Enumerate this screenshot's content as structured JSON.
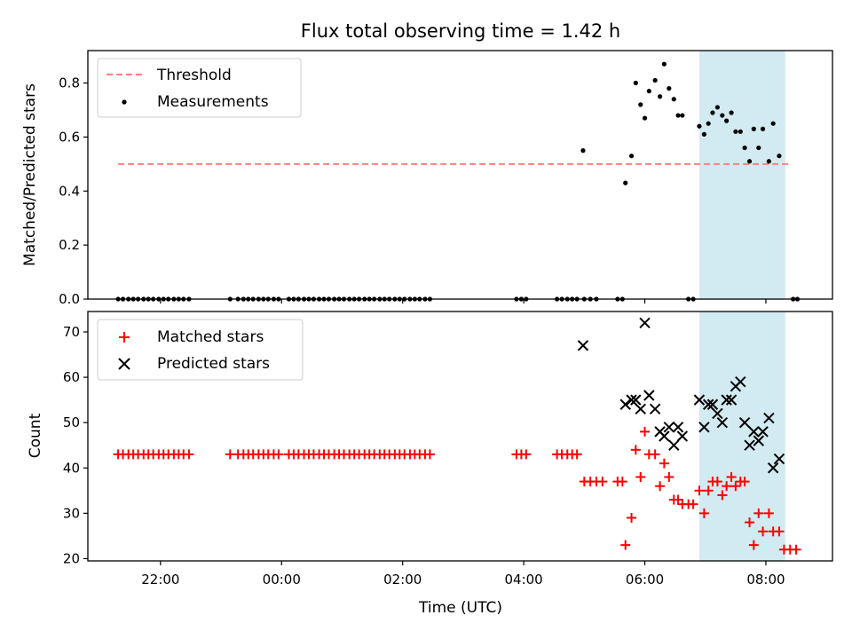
{
  "chart_data": {
    "type": "scatter",
    "title": "Flux total observing time = 1.42 h",
    "xlabel": "Time (UTC)",
    "x_unit": "hours since 00:00 UTC",
    "xlim": [
      -3.2,
      9.1
    ],
    "x_ticks": [
      -2,
      0,
      2,
      4,
      6,
      8
    ],
    "x_tick_labels": [
      "22:00",
      "00:00",
      "02:00",
      "04:00",
      "06:00",
      "08:00"
    ],
    "shaded_span": {
      "x": [
        6.9,
        8.32
      ],
      "color": "#add8e6"
    },
    "panels": [
      {
        "id": "top",
        "ylabel": "Matched/Predicted stars",
        "ylim": [
          0,
          0.92
        ],
        "y_ticks": [
          0.0,
          0.2,
          0.4,
          0.6,
          0.8
        ],
        "y_tick_labels": [
          "0.0",
          "0.2",
          "0.4",
          "0.6",
          "0.8"
        ],
        "legend_position": "top-left",
        "threshold": {
          "name": "Threshold",
          "y": 0.5,
          "x": [
            -2.7,
            8.4
          ],
          "color": "#ff7f7f"
        },
        "series": [
          {
            "name": "Measurements",
            "color": "#000000",
            "marker": "dot",
            "points": [
              [
                -2.7,
                0
              ],
              [
                -2.62,
                0
              ],
              [
                -2.53,
                0
              ],
              [
                -2.45,
                0
              ],
              [
                -2.37,
                0
              ],
              [
                -2.28,
                0
              ],
              [
                -2.2,
                0
              ],
              [
                -2.12,
                0
              ],
              [
                -2.03,
                0
              ],
              [
                -1.95,
                0
              ],
              [
                -1.87,
                0
              ],
              [
                -1.78,
                0
              ],
              [
                -1.7,
                0
              ],
              [
                -1.62,
                0
              ],
              [
                -1.53,
                0
              ],
              [
                -0.85,
                0
              ],
              [
                -0.72,
                0
              ],
              [
                -0.63,
                0
              ],
              [
                -0.55,
                0
              ],
              [
                -0.47,
                0
              ],
              [
                -0.38,
                0
              ],
              [
                -0.3,
                0
              ],
              [
                -0.22,
                0
              ],
              [
                -0.13,
                0
              ],
              [
                -0.05,
                0
              ],
              [
                0.12,
                0
              ],
              [
                0.2,
                0
              ],
              [
                0.28,
                0
              ],
              [
                0.37,
                0
              ],
              [
                0.45,
                0
              ],
              [
                0.53,
                0
              ],
              [
                0.62,
                0
              ],
              [
                0.7,
                0
              ],
              [
                0.78,
                0
              ],
              [
                0.87,
                0
              ],
              [
                0.95,
                0
              ],
              [
                1.03,
                0
              ],
              [
                1.12,
                0
              ],
              [
                1.2,
                0
              ],
              [
                1.28,
                0
              ],
              [
                1.37,
                0
              ],
              [
                1.45,
                0
              ],
              [
                1.53,
                0
              ],
              [
                1.62,
                0
              ],
              [
                1.7,
                0
              ],
              [
                1.78,
                0
              ],
              [
                1.87,
                0
              ],
              [
                1.95,
                0
              ],
              [
                2.03,
                0
              ],
              [
                2.12,
                0
              ],
              [
                2.2,
                0
              ],
              [
                2.28,
                0
              ],
              [
                2.37,
                0
              ],
              [
                2.45,
                0
              ],
              [
                3.88,
                0
              ],
              [
                3.96,
                0
              ],
              [
                4.04,
                0
              ],
              [
                4.55,
                0
              ],
              [
                4.63,
                0
              ],
              [
                4.72,
                0
              ],
              [
                4.8,
                0
              ],
              [
                4.88,
                0
              ],
              [
                5.0,
                0
              ],
              [
                5.1,
                0
              ],
              [
                5.2,
                0
              ],
              [
                5.55,
                0
              ],
              [
                5.63,
                0
              ],
              [
                6.72,
                0
              ],
              [
                6.8,
                0
              ],
              [
                8.45,
                0
              ],
              [
                8.52,
                0
              ],
              [
                4.98,
                0.55
              ],
              [
                5.68,
                0.43
              ],
              [
                5.78,
                0.53
              ],
              [
                5.85,
                0.8
              ],
              [
                5.93,
                0.72
              ],
              [
                6.0,
                0.67
              ],
              [
                6.07,
                0.77
              ],
              [
                6.17,
                0.81
              ],
              [
                6.25,
                0.75
              ],
              [
                6.32,
                0.87
              ],
              [
                6.4,
                0.78
              ],
              [
                6.48,
                0.74
              ],
              [
                6.55,
                0.68
              ],
              [
                6.62,
                0.68
              ],
              [
                6.9,
                0.64
              ],
              [
                6.98,
                0.61
              ],
              [
                7.05,
                0.65
              ],
              [
                7.12,
                0.69
              ],
              [
                7.2,
                0.71
              ],
              [
                7.28,
                0.68
              ],
              [
                7.35,
                0.66
              ],
              [
                7.43,
                0.69
              ],
              [
                7.5,
                0.62
              ],
              [
                7.58,
                0.62
              ],
              [
                7.65,
                0.56
              ],
              [
                7.73,
                0.51
              ],
              [
                7.8,
                0.63
              ],
              [
                7.88,
                0.56
              ],
              [
                7.95,
                0.63
              ],
              [
                8.05,
                0.51
              ],
              [
                8.12,
                0.65
              ],
              [
                8.22,
                0.53
              ]
            ]
          }
        ]
      },
      {
        "id": "bottom",
        "ylabel": "Count",
        "ylim": [
          19.5,
          74.5
        ],
        "y_ticks": [
          20,
          30,
          40,
          50,
          60,
          70
        ],
        "y_tick_labels": [
          "20",
          "30",
          "40",
          "50",
          "60",
          "70"
        ],
        "legend_position": "top-left",
        "series": [
          {
            "name": "Matched stars",
            "color": "#ff0000",
            "marker": "plus",
            "points": [
              [
                -2.7,
                43
              ],
              [
                -2.62,
                43
              ],
              [
                -2.53,
                43
              ],
              [
                -2.45,
                43
              ],
              [
                -2.37,
                43
              ],
              [
                -2.28,
                43
              ],
              [
                -2.2,
                43
              ],
              [
                -2.12,
                43
              ],
              [
                -2.03,
                43
              ],
              [
                -1.95,
                43
              ],
              [
                -1.87,
                43
              ],
              [
                -1.78,
                43
              ],
              [
                -1.7,
                43
              ],
              [
                -1.62,
                43
              ],
              [
                -1.53,
                43
              ],
              [
                -0.85,
                43
              ],
              [
                -0.72,
                43
              ],
              [
                -0.63,
                43
              ],
              [
                -0.55,
                43
              ],
              [
                -0.47,
                43
              ],
              [
                -0.38,
                43
              ],
              [
                -0.3,
                43
              ],
              [
                -0.22,
                43
              ],
              [
                -0.13,
                43
              ],
              [
                -0.05,
                43
              ],
              [
                0.12,
                43
              ],
              [
                0.2,
                43
              ],
              [
                0.28,
                43
              ],
              [
                0.37,
                43
              ],
              [
                0.45,
                43
              ],
              [
                0.53,
                43
              ],
              [
                0.62,
                43
              ],
              [
                0.7,
                43
              ],
              [
                0.78,
                43
              ],
              [
                0.87,
                43
              ],
              [
                0.95,
                43
              ],
              [
                1.03,
                43
              ],
              [
                1.12,
                43
              ],
              [
                1.2,
                43
              ],
              [
                1.28,
                43
              ],
              [
                1.37,
                43
              ],
              [
                1.45,
                43
              ],
              [
                1.53,
                43
              ],
              [
                1.62,
                43
              ],
              [
                1.7,
                43
              ],
              [
                1.78,
                43
              ],
              [
                1.87,
                43
              ],
              [
                1.95,
                43
              ],
              [
                2.03,
                43
              ],
              [
                2.12,
                43
              ],
              [
                2.2,
                43
              ],
              [
                2.28,
                43
              ],
              [
                2.37,
                43
              ],
              [
                2.45,
                43
              ],
              [
                3.88,
                43
              ],
              [
                3.96,
                43
              ],
              [
                4.04,
                43
              ],
              [
                4.55,
                43
              ],
              [
                4.63,
                43
              ],
              [
                4.72,
                43
              ],
              [
                4.8,
                43
              ],
              [
                4.88,
                43
              ],
              [
                5.0,
                37
              ],
              [
                5.1,
                37
              ],
              [
                5.2,
                37
              ],
              [
                5.3,
                37
              ],
              [
                5.55,
                37
              ],
              [
                5.63,
                37
              ],
              [
                5.68,
                23
              ],
              [
                5.78,
                29
              ],
              [
                5.85,
                44
              ],
              [
                5.93,
                38
              ],
              [
                6.0,
                48
              ],
              [
                6.07,
                43
              ],
              [
                6.17,
                43
              ],
              [
                6.25,
                36
              ],
              [
                6.32,
                41
              ],
              [
                6.4,
                38
              ],
              [
                6.48,
                33
              ],
              [
                6.55,
                33
              ],
              [
                6.62,
                32
              ],
              [
                6.72,
                32
              ],
              [
                6.8,
                32
              ],
              [
                6.9,
                35
              ],
              [
                6.98,
                30
              ],
              [
                7.05,
                35
              ],
              [
                7.12,
                37
              ],
              [
                7.2,
                37
              ],
              [
                7.28,
                34
              ],
              [
                7.35,
                36
              ],
              [
                7.43,
                38
              ],
              [
                7.5,
                36
              ],
              [
                7.58,
                37
              ],
              [
                7.65,
                37
              ],
              [
                7.73,
                28
              ],
              [
                7.8,
                23
              ],
              [
                7.88,
                30
              ],
              [
                7.95,
                26
              ],
              [
                8.05,
                30
              ],
              [
                8.12,
                26
              ],
              [
                8.22,
                26
              ],
              [
                8.3,
                22
              ],
              [
                8.4,
                22
              ],
              [
                8.5,
                22
              ]
            ]
          },
          {
            "name": "Predicted stars",
            "color": "#000000",
            "marker": "x",
            "points": [
              [
                4.98,
                67
              ],
              [
                5.68,
                54
              ],
              [
                5.78,
                55
              ],
              [
                5.85,
                55
              ],
              [
                5.93,
                53
              ],
              [
                6.0,
                72
              ],
              [
                6.07,
                56
              ],
              [
                6.17,
                53
              ],
              [
                6.25,
                48
              ],
              [
                6.32,
                47
              ],
              [
                6.4,
                49
              ],
              [
                6.48,
                45
              ],
              [
                6.55,
                49
              ],
              [
                6.62,
                47
              ],
              [
                6.9,
                55
              ],
              [
                6.98,
                49
              ],
              [
                7.05,
                54
              ],
              [
                7.12,
                54
              ],
              [
                7.2,
                52
              ],
              [
                7.28,
                50
              ],
              [
                7.35,
                55
              ],
              [
                7.43,
                55
              ],
              [
                7.5,
                58
              ],
              [
                7.58,
                59
              ],
              [
                7.65,
                50
              ],
              [
                7.73,
                45
              ],
              [
                7.8,
                48
              ],
              [
                7.88,
                46
              ],
              [
                7.95,
                48
              ],
              [
                8.05,
                51
              ],
              [
                8.12,
                40
              ],
              [
                8.22,
                42
              ]
            ]
          }
        ]
      }
    ]
  }
}
